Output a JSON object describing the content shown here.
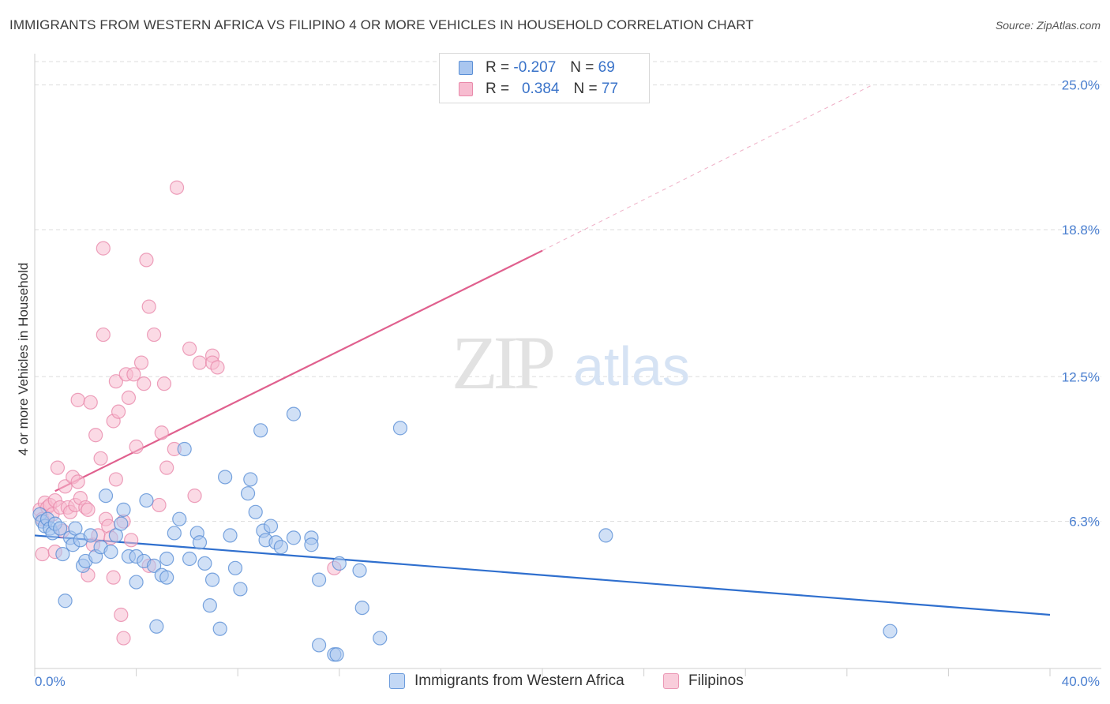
{
  "header": {
    "title": "IMMIGRANTS FROM WESTERN AFRICA VS FILIPINO 4 OR MORE VEHICLES IN HOUSEHOLD CORRELATION CHART",
    "source": "Source: ZipAtlas.com"
  },
  "watermark": {
    "zip": "ZIP",
    "atlas": "atlas"
  },
  "legend": {
    "r_label": "R =",
    "n_label": "N =",
    "rows": [
      {
        "r": "-0.207",
        "n": "69"
      },
      {
        "r": "0.384",
        "n": "77"
      }
    ]
  },
  "colors": {
    "blue_fill": "#a9c6ef",
    "blue_stroke": "#5a8fd6",
    "blue_line": "#2f6fce",
    "pink_fill": "#f7bcd0",
    "pink_stroke": "#e98aab",
    "pink_line": "#e0608e",
    "grid": "#dddddd",
    "tick_label": "#4a7fd0"
  },
  "chart_data": {
    "type": "scatter",
    "title": "IMMIGRANTS FROM WESTERN AFRICA VS FILIPINO 4 OR MORE VEHICLES IN HOUSEHOLD CORRELATION CHART",
    "xlabel": "",
    "ylabel": "4 or more Vehicles in Household",
    "xlim": [
      0,
      40
    ],
    "ylim": [
      0,
      26
    ],
    "x_tick_labels": [
      "0.0%",
      "40.0%"
    ],
    "y_ticks": [
      6.3,
      12.5,
      18.8,
      25.0
    ],
    "y_tick_labels": [
      "6.3%",
      "12.5%",
      "18.8%",
      "25.0%"
    ],
    "grid": "horizontal dashed",
    "legend_position": "top-center",
    "series": [
      {
        "name": "Immigrants from Western Africa",
        "color": "#a9c6ef",
        "R": -0.207,
        "N": 69,
        "trend": {
          "x": [
            0,
            40
          ],
          "y": [
            5.7,
            2.3
          ],
          "dashed_extension": false
        },
        "points": [
          [
            0.2,
            6.6
          ],
          [
            0.3,
            6.3
          ],
          [
            0.4,
            6.1
          ],
          [
            0.5,
            6.4
          ],
          [
            0.6,
            6.0
          ],
          [
            0.7,
            5.8
          ],
          [
            0.8,
            6.2
          ],
          [
            1.0,
            6.0
          ],
          [
            1.1,
            4.9
          ],
          [
            1.2,
            2.9
          ],
          [
            1.4,
            5.6
          ],
          [
            1.5,
            5.3
          ],
          [
            1.6,
            6.0
          ],
          [
            1.8,
            5.5
          ],
          [
            1.9,
            4.4
          ],
          [
            2.0,
            4.6
          ],
          [
            2.2,
            5.7
          ],
          [
            2.4,
            4.8
          ],
          [
            2.6,
            5.2
          ],
          [
            2.8,
            7.4
          ],
          [
            3.0,
            5.0
          ],
          [
            3.2,
            5.7
          ],
          [
            3.4,
            6.2
          ],
          [
            3.5,
            6.8
          ],
          [
            3.7,
            4.8
          ],
          [
            4.0,
            4.8
          ],
          [
            4.0,
            3.7
          ],
          [
            4.3,
            4.6
          ],
          [
            4.4,
            7.2
          ],
          [
            4.7,
            4.4
          ],
          [
            4.8,
            1.8
          ],
          [
            5.0,
            4.0
          ],
          [
            5.2,
            4.7
          ],
          [
            5.2,
            3.9
          ],
          [
            5.5,
            5.8
          ],
          [
            5.7,
            6.4
          ],
          [
            5.9,
            9.4
          ],
          [
            6.1,
            4.7
          ],
          [
            6.4,
            5.8
          ],
          [
            6.5,
            5.4
          ],
          [
            6.7,
            4.5
          ],
          [
            6.9,
            2.7
          ],
          [
            7.0,
            3.8
          ],
          [
            7.3,
            1.7
          ],
          [
            7.5,
            8.2
          ],
          [
            7.7,
            5.7
          ],
          [
            7.9,
            4.3
          ],
          [
            8.1,
            3.4
          ],
          [
            8.4,
            7.5
          ],
          [
            8.5,
            8.1
          ],
          [
            8.7,
            6.7
          ],
          [
            8.9,
            10.2
          ],
          [
            9.0,
            5.9
          ],
          [
            9.1,
            5.5
          ],
          [
            9.3,
            6.1
          ],
          [
            9.5,
            5.4
          ],
          [
            9.7,
            5.2
          ],
          [
            10.2,
            10.9
          ],
          [
            10.2,
            5.6
          ],
          [
            10.9,
            5.6
          ],
          [
            10.9,
            5.3
          ],
          [
            11.2,
            3.8
          ],
          [
            11.2,
            1.0
          ],
          [
            11.8,
            0.6
          ],
          [
            11.9,
            0.6
          ],
          [
            12.0,
            4.5
          ],
          [
            12.8,
            4.2
          ],
          [
            12.9,
            2.6
          ],
          [
            13.6,
            1.3
          ],
          [
            14.4,
            10.3
          ],
          [
            22.5,
            5.7
          ],
          [
            33.7,
            1.6
          ]
        ]
      },
      {
        "name": "Filipinos",
        "color": "#f7bcd0",
        "R": 0.384,
        "N": 77,
        "trend": {
          "x": [
            0.8,
            20.0
          ],
          "y": [
            7.6,
            17.9
          ],
          "dashed_to": [
            33.0,
            25.0
          ]
        },
        "points": [
          [
            0.2,
            6.8
          ],
          [
            0.3,
            6.4
          ],
          [
            0.3,
            4.9
          ],
          [
            0.4,
            7.1
          ],
          [
            0.5,
            6.9
          ],
          [
            0.6,
            7.0
          ],
          [
            0.7,
            6.6
          ],
          [
            0.8,
            7.2
          ],
          [
            0.8,
            5.0
          ],
          [
            0.9,
            8.6
          ],
          [
            1.0,
            6.9
          ],
          [
            1.1,
            5.9
          ],
          [
            1.2,
            7.8
          ],
          [
            1.3,
            6.9
          ],
          [
            1.4,
            6.7
          ],
          [
            1.5,
            8.2
          ],
          [
            1.6,
            7.0
          ],
          [
            1.7,
            8.0
          ],
          [
            1.7,
            11.5
          ],
          [
            1.8,
            7.3
          ],
          [
            2.0,
            6.9
          ],
          [
            2.1,
            6.8
          ],
          [
            2.1,
            4.0
          ],
          [
            2.2,
            11.4
          ],
          [
            2.3,
            5.3
          ],
          [
            2.4,
            10.0
          ],
          [
            2.5,
            5.7
          ],
          [
            2.6,
            9.0
          ],
          [
            2.7,
            14.3
          ],
          [
            2.7,
            18.0
          ],
          [
            2.8,
            6.4
          ],
          [
            2.9,
            6.1
          ],
          [
            3.0,
            5.6
          ],
          [
            3.1,
            3.9
          ],
          [
            3.1,
            10.6
          ],
          [
            3.2,
            8.1
          ],
          [
            3.2,
            12.3
          ],
          [
            3.3,
            11.0
          ],
          [
            3.4,
            2.3
          ],
          [
            3.5,
            6.3
          ],
          [
            3.5,
            1.3
          ],
          [
            3.6,
            12.6
          ],
          [
            3.7,
            11.6
          ],
          [
            3.8,
            5.5
          ],
          [
            3.9,
            12.6
          ],
          [
            4.0,
            9.5
          ],
          [
            4.2,
            13.1
          ],
          [
            4.3,
            12.2
          ],
          [
            4.4,
            17.5
          ],
          [
            4.5,
            15.5
          ],
          [
            4.5,
            4.4
          ],
          [
            4.7,
            14.3
          ],
          [
            4.9,
            7.0
          ],
          [
            5.0,
            10.1
          ],
          [
            5.1,
            12.2
          ],
          [
            5.2,
            8.6
          ],
          [
            5.5,
            9.4
          ],
          [
            5.6,
            20.6
          ],
          [
            6.1,
            13.7
          ],
          [
            6.3,
            7.4
          ],
          [
            6.5,
            13.1
          ],
          [
            7.0,
            13.4
          ],
          [
            7.0,
            13.1
          ],
          [
            7.2,
            12.9
          ],
          [
            11.8,
            4.3
          ]
        ]
      }
    ]
  },
  "bottom_legend": {
    "items": [
      {
        "label": "Immigrants from Western Africa"
      },
      {
        "label": "Filipinos"
      }
    ]
  }
}
